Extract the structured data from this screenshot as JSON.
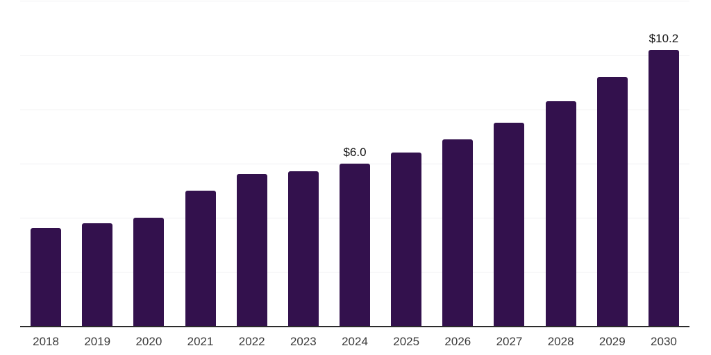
{
  "chart_data": {
    "type": "bar",
    "title": "",
    "categories": [
      "2018",
      "2019",
      "2020",
      "2021",
      "2022",
      "2023",
      "2024",
      "2025",
      "2026",
      "2027",
      "2028",
      "2029",
      "2030"
    ],
    "values": [
      3.6,
      3.8,
      4.0,
      5.0,
      5.6,
      5.7,
      6.0,
      6.4,
      6.9,
      7.5,
      8.3,
      9.2,
      10.2
    ],
    "bar_labels": [
      "",
      "",
      "",
      "",
      "",
      "",
      "$6.0",
      "",
      "",
      "",
      "",
      "",
      "$10.2"
    ],
    "xlabel": "",
    "ylabel": "",
    "ylim": [
      0,
      12
    ],
    "gridline_values": [
      2,
      4,
      6,
      8,
      10,
      12
    ],
    "grid": "horizontal-only",
    "y_tick_labels_visible": false,
    "legend": "none",
    "colors": {
      "bar": "#33114D",
      "gridline": "#F0F0F2",
      "axis_line": "#2B2B2B",
      "tick_label": "#3A3A3A",
      "data_label": "#141414",
      "background": "#FFFFFF"
    }
  }
}
